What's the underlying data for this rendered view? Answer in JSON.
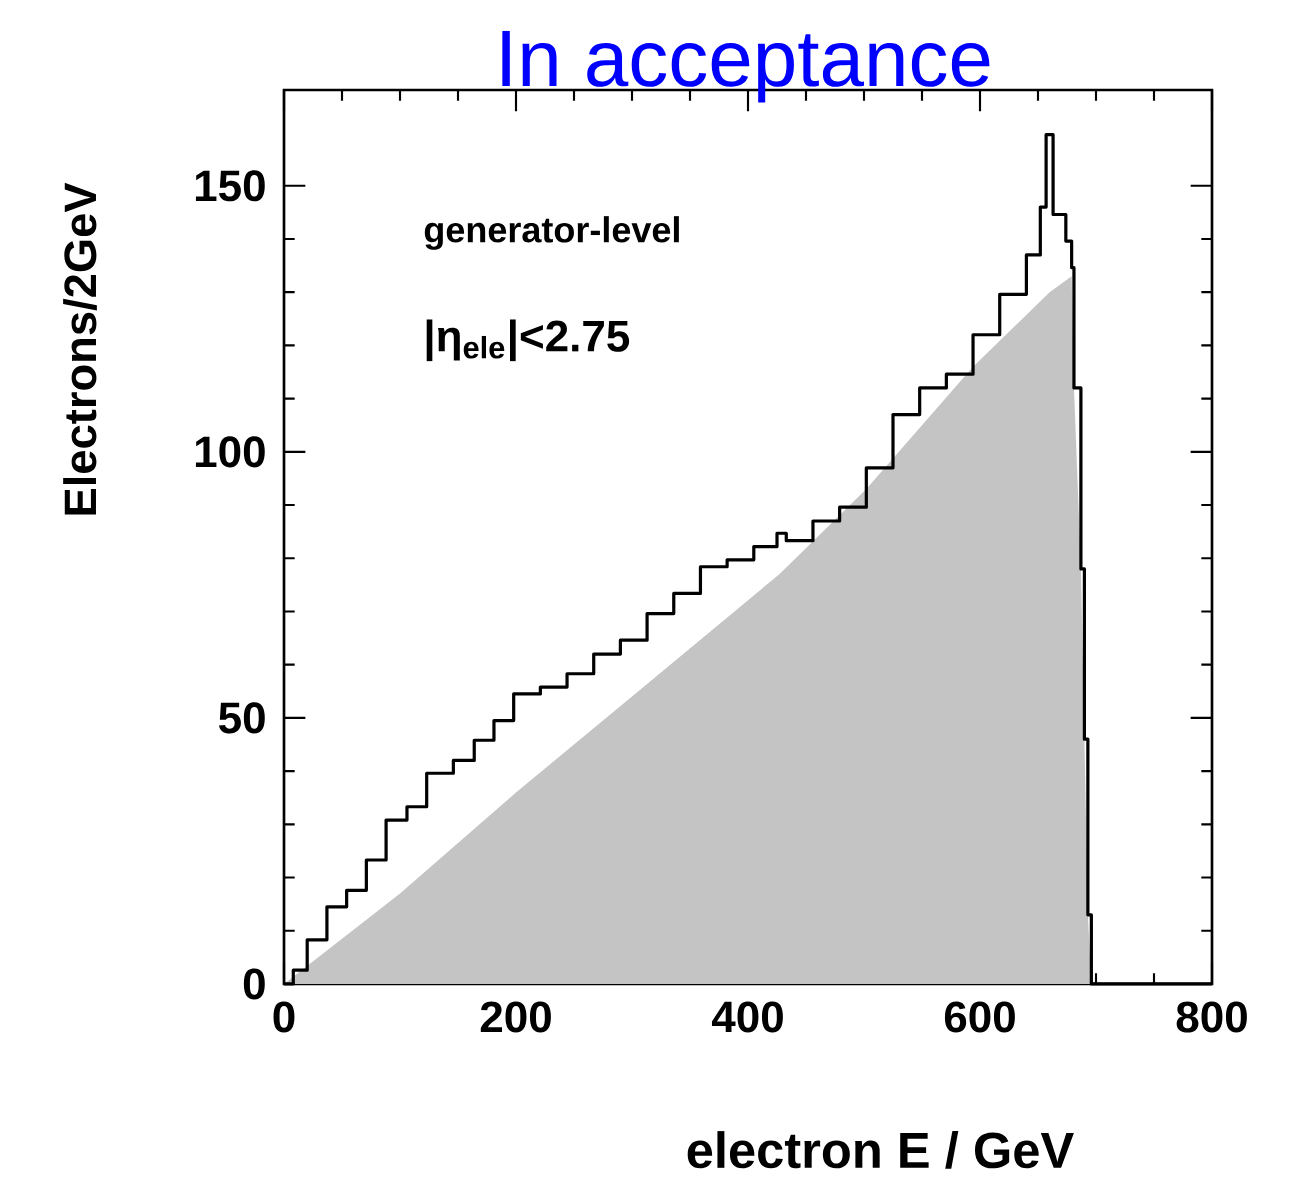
{
  "chart_data": {
    "type": "step",
    "title": "In acceptance",
    "xlabel": "electron E / GeV",
    "ylabel": "Electrons/2GeV",
    "annotations": [
      "generator-level",
      "|η$_{ele}$|<2.75"
    ],
    "xlim": [
      0,
      800
    ],
    "ylim": [
      0,
      168
    ],
    "xticks": [
      0,
      200,
      400,
      600,
      800
    ],
    "yticks": [
      0,
      50,
      100,
      150
    ],
    "series": [
      {
        "type": "area",
        "color": "#c4c4c4",
        "x": [
          0,
          100,
          200,
          300,
          427,
          502,
          594,
          660,
          679,
          681,
          687,
          690,
          693,
          696
        ],
        "values": [
          0,
          17,
          36,
          54,
          77,
          93,
          116,
          130,
          133,
          112,
          78,
          46,
          13,
          0
        ]
      },
      {
        "color": "#000000",
        "x": [
          0,
          8,
          20,
          37,
          54,
          71,
          88,
          106,
          123,
          146,
          164,
          181,
          198,
          221,
          244,
          267,
          290,
          313,
          336,
          359,
          382,
          405,
          425,
          433,
          456,
          479,
          502,
          525,
          548,
          571,
          594,
          617,
          640,
          652,
          657,
          663,
          674,
          679,
          681,
          687,
          690,
          693,
          696,
          800
        ],
        "values": [
          0,
          2.6,
          8.3,
          14.5,
          17.6,
          23.3,
          30.8,
          33.3,
          39.6,
          42,
          45.8,
          49.5,
          54.5,
          55.8,
          58.3,
          62,
          64.6,
          69.6,
          73.4,
          78.4,
          79.7,
          82.2,
          84.7,
          83.3,
          87,
          89.6,
          97,
          107,
          112,
          114.6,
          122,
          129.6,
          137,
          146,
          159.6,
          144.6,
          139.6,
          134.6,
          112,
          78,
          46,
          13,
          0,
          0
        ]
      }
    ]
  }
}
